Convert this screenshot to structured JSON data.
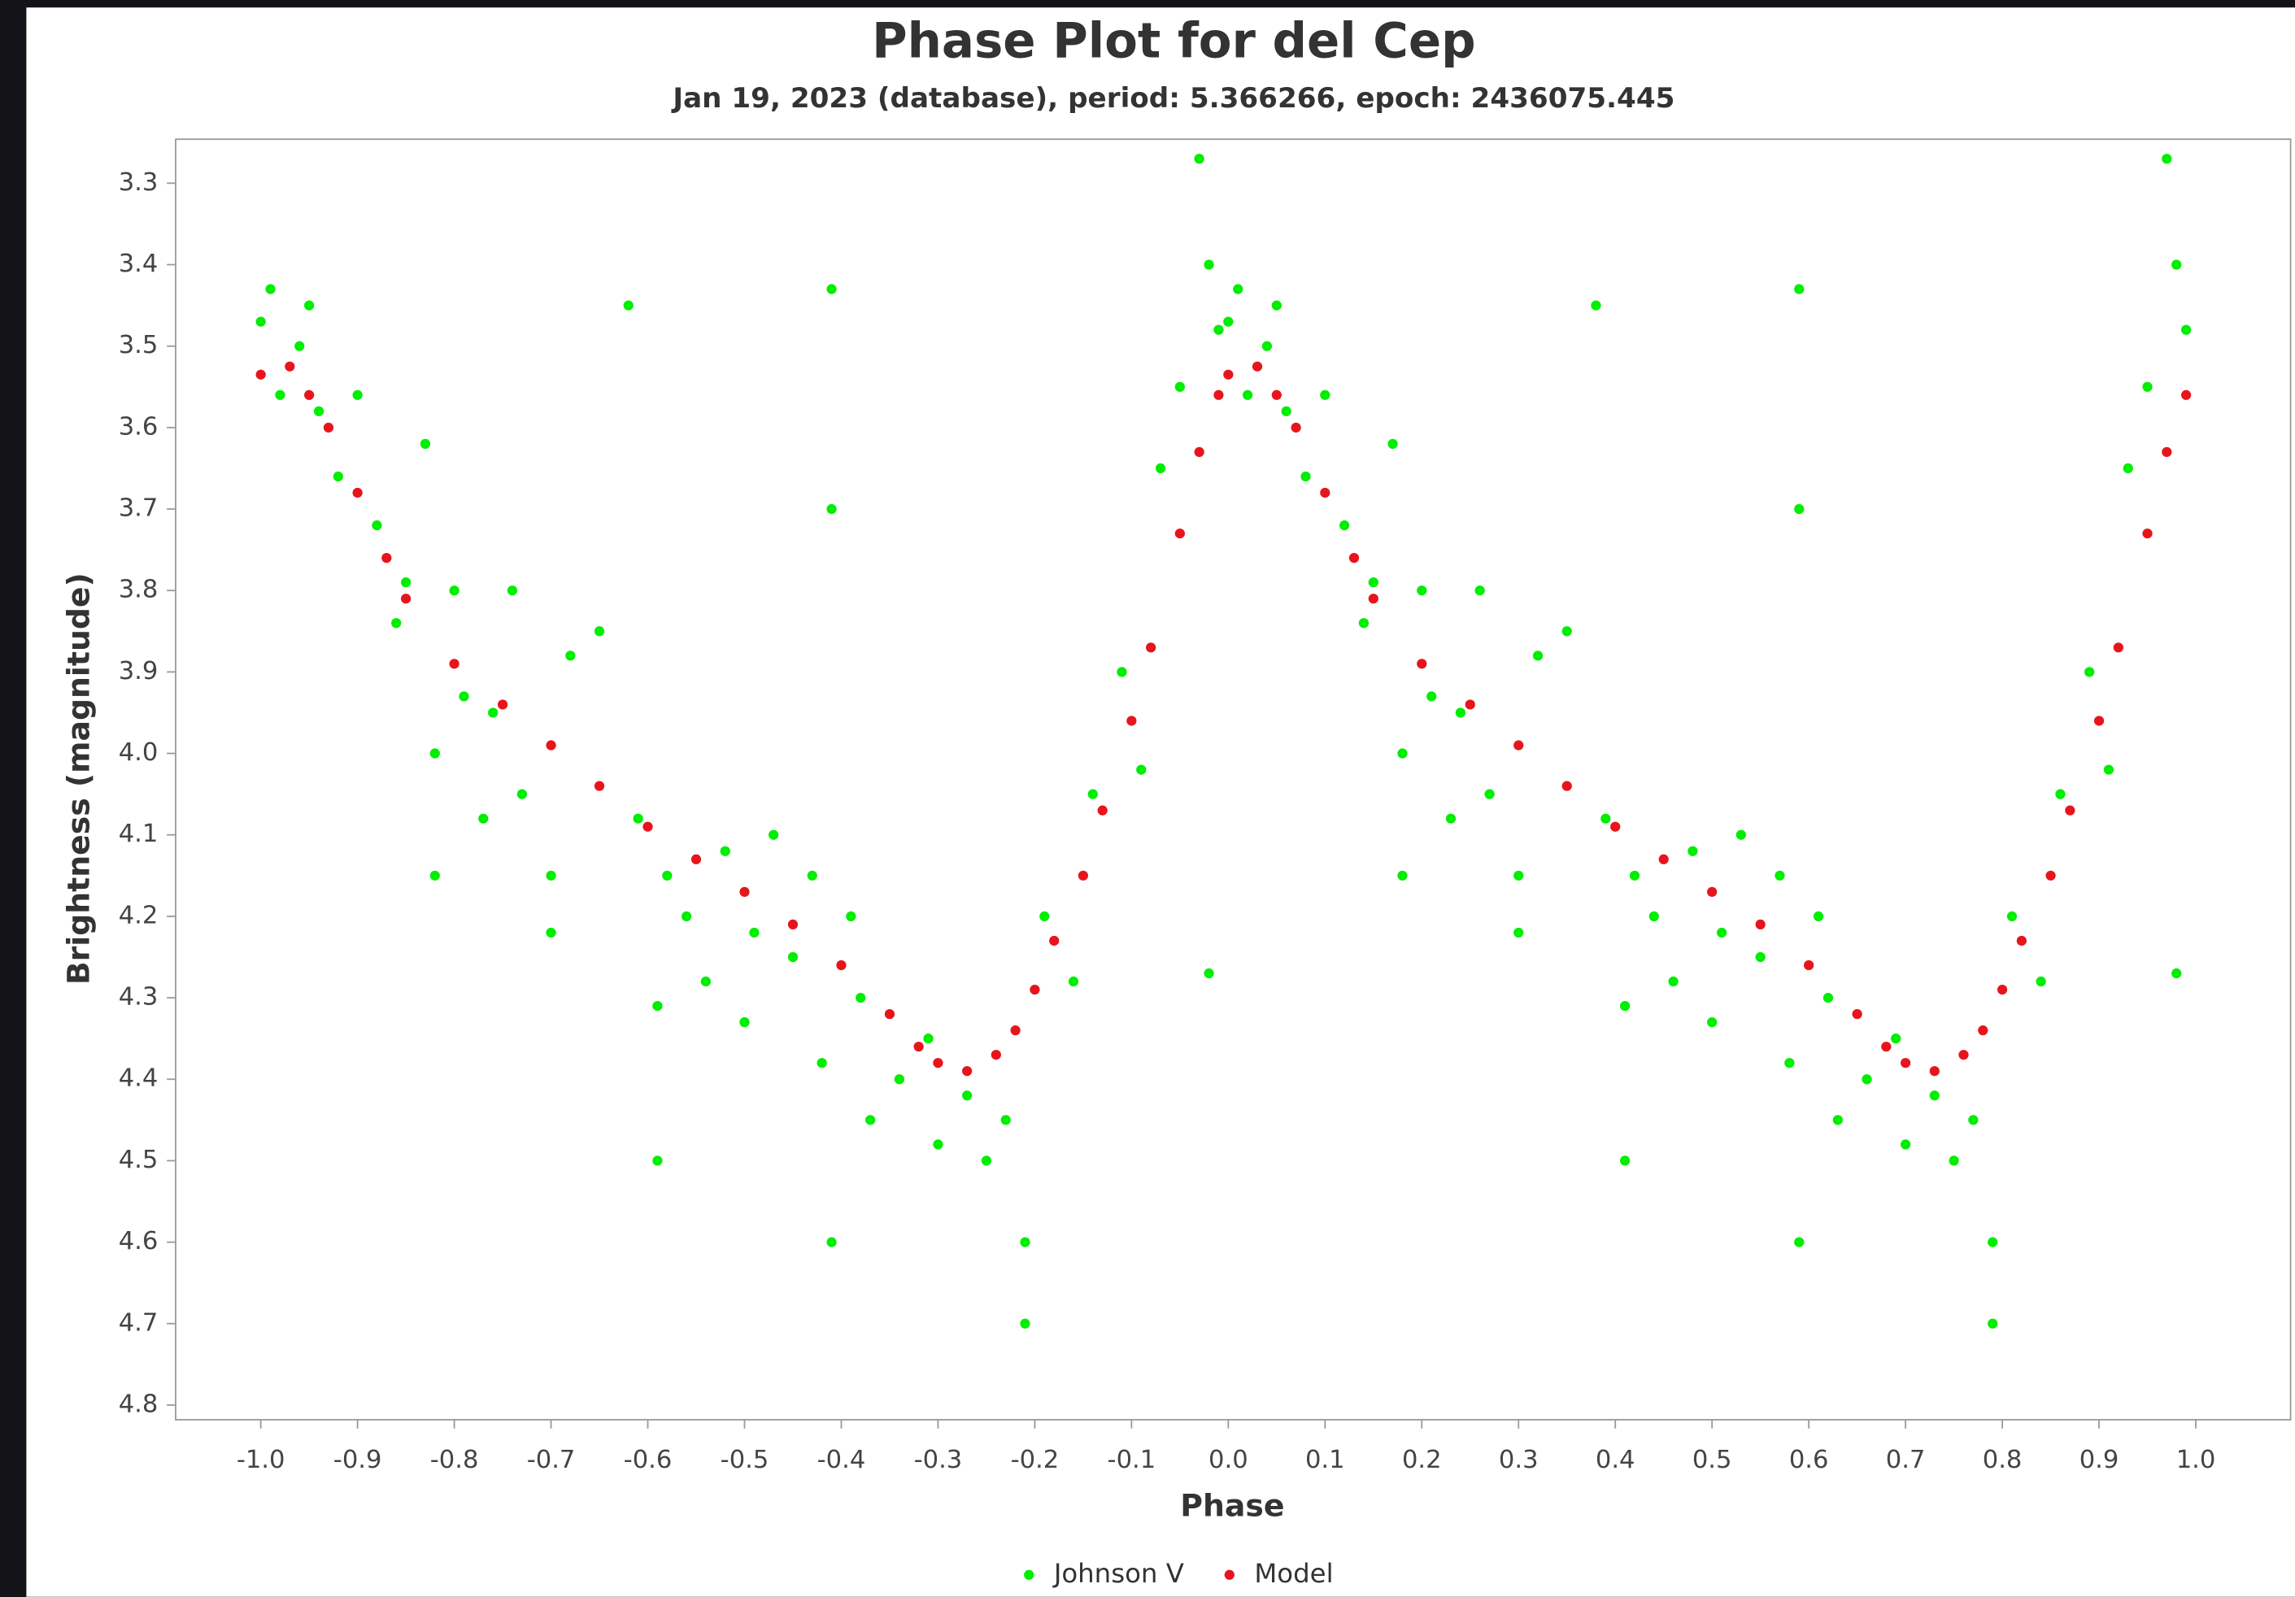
{
  "chart_data": {
    "type": "scatter",
    "title": "Phase Plot for del Cep",
    "subtitle": "Jan 19, 2023 (database), period: 5.366266, epoch: 2436075.445",
    "x_label": "Phase",
    "y_label": "Brightness (magnitude)",
    "xlim": [
      -1.088,
      1.098
    ],
    "ylim": [
      4.818,
      3.246
    ],
    "xticks": [
      {
        "value": -1,
        "label": "-1.0"
      },
      -0.9,
      -0.8,
      -0.7,
      -0.6,
      -0.5,
      -0.4,
      -0.3,
      -0.2,
      -0.1,
      {
        "value": 0,
        "label": "0.0"
      },
      0.1,
      0.2,
      0.3,
      0.4,
      0.5,
      0.6,
      0.7,
      0.8,
      0.9,
      {
        "value": 1,
        "label": "1.0"
      }
    ],
    "yticks": [
      3.3,
      3.4,
      3.5,
      3.6,
      3.7,
      3.8,
      3.9,
      {
        "value": 4,
        "label": "4.0"
      },
      4.1,
      4.2,
      4.3,
      4.4,
      4.5,
      4.6,
      4.7,
      4.8
    ],
    "legend_position": "bottom",
    "series": [
      {
        "name": "Johnson V",
        "color": "#00ee00",
        "x": [
          -1.0,
          -0.99,
          -0.98,
          -0.96,
          -0.95,
          -0.94,
          -0.92,
          -0.9,
          -0.88,
          -0.86,
          -0.85,
          -0.83,
          -0.82,
          -0.82,
          -0.8,
          -0.79,
          -0.77,
          -0.76,
          -0.74,
          -0.73,
          -0.7,
          -0.7,
          -0.68,
          -0.65,
          -0.62,
          -0.61,
          -0.59,
          -0.59,
          -0.58,
          -0.56,
          -0.54,
          -0.52,
          -0.5,
          -0.49,
          -0.47,
          -0.45,
          -0.43,
          -0.42,
          -0.41,
          -0.41,
          -0.41,
          -0.39,
          -0.38,
          -0.37,
          -0.34,
          -0.31,
          -0.3,
          -0.27,
          -0.25,
          -0.23,
          -0.21,
          -0.21,
          -0.19,
          -0.16,
          -0.14,
          -0.11,
          -0.09,
          -0.07,
          -0.05,
          -0.03,
          -0.02,
          -0.02,
          -0.01,
          0.0,
          0.01,
          0.02,
          0.04,
          0.05,
          0.06,
          0.08,
          0.1,
          0.12,
          0.14,
          0.15,
          0.17,
          0.18,
          0.18,
          0.2,
          0.21,
          0.23,
          0.24,
          0.26,
          0.27,
          0.3,
          0.3,
          0.32,
          0.35,
          0.38,
          0.39,
          0.41,
          0.41,
          0.42,
          0.44,
          0.46,
          0.48,
          0.5,
          0.51,
          0.53,
          0.55,
          0.57,
          0.58,
          0.59,
          0.59,
          0.59,
          0.61,
          0.62,
          0.63,
          0.66,
          0.69,
          0.7,
          0.73,
          0.75,
          0.77,
          0.79,
          0.79,
          0.81,
          0.84,
          0.86,
          0.89,
          0.91,
          0.93,
          0.95,
          0.97,
          0.98,
          0.98,
          0.99
        ],
        "values": [
          3.47,
          3.43,
          3.56,
          3.5,
          3.45,
          3.58,
          3.66,
          3.56,
          3.72,
          3.84,
          3.79,
          3.62,
          4.0,
          4.15,
          3.8,
          3.93,
          4.08,
          3.95,
          3.8,
          4.05,
          4.15,
          4.22,
          3.88,
          3.85,
          3.45,
          4.08,
          4.31,
          4.5,
          4.15,
          4.2,
          4.28,
          4.12,
          4.33,
          4.22,
          4.1,
          4.25,
          4.15,
          4.38,
          3.43,
          3.7,
          4.6,
          4.2,
          4.3,
          4.45,
          4.4,
          4.35,
          4.48,
          4.42,
          4.5,
          4.45,
          4.7,
          4.6,
          4.2,
          4.28,
          4.05,
          3.9,
          4.02,
          3.65,
          3.55,
          3.27,
          3.4,
          4.27,
          3.48,
          3.47,
          3.43,
          3.56,
          3.5,
          3.45,
          3.58,
          3.66,
          3.56,
          3.72,
          3.84,
          3.79,
          3.62,
          4.0,
          4.15,
          3.8,
          3.93,
          4.08,
          3.95,
          3.8,
          4.05,
          4.15,
          4.22,
          3.88,
          3.85,
          3.45,
          4.08,
          4.31,
          4.5,
          4.15,
          4.2,
          4.28,
          4.12,
          4.33,
          4.22,
          4.1,
          4.25,
          4.15,
          4.38,
          3.43,
          3.7,
          4.6,
          4.2,
          4.3,
          4.45,
          4.4,
          4.35,
          4.48,
          4.42,
          4.5,
          4.45,
          4.7,
          4.6,
          4.2,
          4.28,
          4.05,
          3.9,
          4.02,
          3.65,
          3.55,
          3.27,
          3.4,
          4.27,
          3.48
        ]
      },
      {
        "name": "Model",
        "color": "#e8141c",
        "x": [
          -1.0,
          -0.97,
          -0.95,
          -0.93,
          -0.9,
          -0.87,
          -0.85,
          -0.8,
          -0.75,
          -0.7,
          -0.65,
          -0.6,
          -0.55,
          -0.5,
          -0.45,
          -0.4,
          -0.35,
          -0.32,
          -0.3,
          -0.27,
          -0.24,
          -0.22,
          -0.2,
          -0.18,
          -0.15,
          -0.13,
          -0.1,
          -0.08,
          -0.05,
          -0.03,
          -0.01,
          0.0,
          0.03,
          0.05,
          0.07,
          0.1,
          0.13,
          0.15,
          0.2,
          0.25,
          0.3,
          0.35,
          0.4,
          0.45,
          0.5,
          0.55,
          0.6,
          0.65,
          0.68,
          0.7,
          0.73,
          0.76,
          0.78,
          0.8,
          0.82,
          0.85,
          0.87,
          0.9,
          0.92,
          0.95,
          0.97,
          0.99
        ],
        "values": [
          3.535,
          3.525,
          3.56,
          3.6,
          3.68,
          3.76,
          3.81,
          3.89,
          3.94,
          3.99,
          4.04,
          4.09,
          4.13,
          4.17,
          4.21,
          4.26,
          4.32,
          4.36,
          4.38,
          4.39,
          4.37,
          4.34,
          4.29,
          4.23,
          4.15,
          4.07,
          3.96,
          3.87,
          3.73,
          3.63,
          3.56,
          3.535,
          3.525,
          3.56,
          3.6,
          3.68,
          3.76,
          3.81,
          3.89,
          3.94,
          3.99,
          4.04,
          4.09,
          4.13,
          4.17,
          4.21,
          4.26,
          4.32,
          4.36,
          4.38,
          4.39,
          4.37,
          4.34,
          4.29,
          4.23,
          4.15,
          4.07,
          3.96,
          3.87,
          3.73,
          3.63,
          3.56
        ]
      }
    ]
  }
}
